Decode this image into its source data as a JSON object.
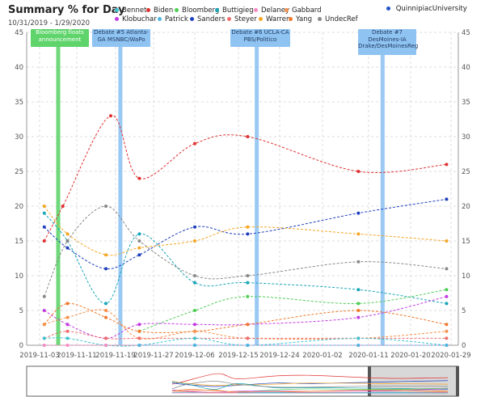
{
  "header": {
    "title": "Summary % for Day",
    "date_range": "10/31/2019 - 1/29/2020",
    "source_label": "QuinnipiacUniversity",
    "source_color": "#1f54c6"
  },
  "legend": [
    {
      "name": "Bennet",
      "color": "#3fc4d1"
    },
    {
      "name": "Biden",
      "color": "#e03131"
    },
    {
      "name": "Bloomberg",
      "color": "#4fce54"
    },
    {
      "name": "Buttigieg",
      "color": "#18a6b8"
    },
    {
      "name": "Delaney",
      "color": "#f58ac2"
    },
    {
      "name": "Gabbard",
      "color": "#f7924d"
    },
    {
      "name": "Klobuchar",
      "color": "#c13ce0"
    },
    {
      "name": "Patrick",
      "color": "#4db5e0"
    },
    {
      "name": "Sanders",
      "color": "#1f3fbd"
    },
    {
      "name": "Steyer",
      "color": "#f06d6d"
    },
    {
      "name": "Warren",
      "color": "#f5a623"
    },
    {
      "name": "Yang",
      "color": "#f07a2e"
    },
    {
      "name": "UndecRef",
      "color": "#888888"
    }
  ],
  "events": [
    {
      "label": "Bloomberg floats announcement",
      "date": "2019-11-07",
      "color": "#5fd46b",
      "style": "green"
    },
    {
      "label": "Debate #5 Atlanta-GA MSNBC/WaPo",
      "date": "2019-11-20",
      "color": "#8fc3f2",
      "style": "blue"
    },
    {
      "label": "Debate #6 UCLA-CA PBS/Politico",
      "date": "2019-12-19",
      "color": "#8fc3f2",
      "style": "blue"
    },
    {
      "label": "Debate #7 DesMoines-IA Drake/DesMoinesReg",
      "date": "2020-01-14",
      "color": "#8fc3f2",
      "style": "blue"
    }
  ],
  "chart_data": {
    "type": "line",
    "title": "Summary % for Day",
    "xlabel": "",
    "ylabel": "",
    "x_ticks": [
      "2019-11-03",
      "2019-11-11",
      "2019-11-19",
      "2019-11-27",
      "2019-12-06",
      "2019-12-15",
      "2019-12-24",
      "2020-01-02",
      "2020-01-11",
      "2020-01-20",
      "2020-01-29"
    ],
    "ylim": [
      0,
      45
    ],
    "y_ticks": [
      0,
      5,
      10,
      15,
      20,
      25,
      30,
      35,
      40,
      45
    ],
    "grid": true,
    "series": [
      {
        "name": "Biden",
        "color": "#e03131",
        "points": [
          [
            "2019-11-04",
            15
          ],
          [
            "2019-11-08",
            20
          ],
          [
            "2019-11-18",
            33
          ],
          [
            "2019-11-24",
            24
          ],
          [
            "2019-12-06",
            29
          ],
          [
            "2019-12-17",
            30
          ],
          [
            "2020-01-09",
            25
          ],
          [
            "2020-01-28",
            26
          ]
        ]
      },
      {
        "name": "Sanders",
        "color": "#1f3fbd",
        "points": [
          [
            "2019-11-04",
            17
          ],
          [
            "2019-11-09",
            14
          ],
          [
            "2019-11-17",
            11
          ],
          [
            "2019-11-24",
            13
          ],
          [
            "2019-12-06",
            17
          ],
          [
            "2019-12-17",
            16
          ],
          [
            "2020-01-09",
            19
          ],
          [
            "2020-01-28",
            21
          ]
        ]
      },
      {
        "name": "Warren",
        "color": "#f5a623",
        "points": [
          [
            "2019-11-04",
            20
          ],
          [
            "2019-11-09",
            16
          ],
          [
            "2019-11-17",
            13
          ],
          [
            "2019-11-24",
            14
          ],
          [
            "2019-12-06",
            15
          ],
          [
            "2019-12-17",
            17
          ],
          [
            "2020-01-09",
            16
          ],
          [
            "2020-01-28",
            15
          ]
        ]
      },
      {
        "name": "Buttigieg",
        "color": "#18a6b8",
        "points": [
          [
            "2019-11-04",
            19
          ],
          [
            "2019-11-09",
            15
          ],
          [
            "2019-11-17",
            6
          ],
          [
            "2019-11-24",
            16
          ],
          [
            "2019-12-06",
            9
          ],
          [
            "2019-12-17",
            9
          ],
          [
            "2020-01-09",
            8
          ],
          [
            "2020-01-28",
            6
          ]
        ]
      },
      {
        "name": "UndecRef",
        "color": "#888888",
        "points": [
          [
            "2019-11-04",
            7
          ],
          [
            "2019-11-09",
            15
          ],
          [
            "2019-11-17",
            20
          ],
          [
            "2019-11-24",
            15
          ],
          [
            "2019-12-06",
            10
          ],
          [
            "2019-12-17",
            10
          ],
          [
            "2020-01-09",
            12
          ],
          [
            "2020-01-28",
            11
          ]
        ]
      },
      {
        "name": "Bloomberg",
        "color": "#4fce54",
        "points": [
          [
            "2019-11-24",
            2
          ],
          [
            "2019-12-06",
            5
          ],
          [
            "2019-12-17",
            7
          ],
          [
            "2020-01-09",
            6
          ],
          [
            "2020-01-28",
            8
          ]
        ]
      },
      {
        "name": "Klobuchar",
        "color": "#c13ce0",
        "points": [
          [
            "2019-11-04",
            5
          ],
          [
            "2019-11-09",
            3
          ],
          [
            "2019-11-17",
            1
          ],
          [
            "2019-11-24",
            3
          ],
          [
            "2019-12-06",
            3
          ],
          [
            "2019-12-17",
            3
          ],
          [
            "2020-01-09",
            4
          ],
          [
            "2020-01-28",
            7
          ]
        ]
      },
      {
        "name": "Yang",
        "color": "#f07a2e",
        "points": [
          [
            "2019-11-04",
            3
          ],
          [
            "2019-11-09",
            6
          ],
          [
            "2019-11-17",
            4
          ],
          [
            "2019-11-24",
            2
          ],
          [
            "2019-12-06",
            2
          ],
          [
            "2019-12-17",
            3
          ],
          [
            "2020-01-09",
            5
          ],
          [
            "2020-01-28",
            3
          ]
        ]
      },
      {
        "name": "Gabbard",
        "color": "#f7924d",
        "points": [
          [
            "2019-11-04",
            3
          ],
          [
            "2019-11-09",
            4
          ],
          [
            "2019-11-17",
            5
          ],
          [
            "2019-11-24",
            1
          ],
          [
            "2019-12-06",
            2
          ],
          [
            "2019-12-17",
            1
          ],
          [
            "2020-01-09",
            1
          ],
          [
            "2020-01-28",
            2
          ]
        ]
      },
      {
        "name": "Steyer",
        "color": "#f06d6d",
        "points": [
          [
            "2019-11-04",
            1
          ],
          [
            "2019-11-09",
            2
          ],
          [
            "2019-11-17",
            1
          ],
          [
            "2019-11-24",
            1
          ],
          [
            "2019-12-06",
            1
          ],
          [
            "2019-12-17",
            1
          ],
          [
            "2020-01-09",
            1
          ],
          [
            "2020-01-28",
            1
          ]
        ]
      },
      {
        "name": "Bennet",
        "color": "#3fc4d1",
        "points": [
          [
            "2019-11-04",
            1
          ],
          [
            "2019-11-09",
            1
          ],
          [
            "2019-11-17",
            0
          ],
          [
            "2019-11-24",
            0
          ],
          [
            "2019-12-06",
            1
          ],
          [
            "2019-12-17",
            0
          ],
          [
            "2020-01-09",
            1
          ],
          [
            "2020-01-28",
            0
          ]
        ]
      },
      {
        "name": "Delaney",
        "color": "#f58ac2",
        "points": [
          [
            "2019-11-04",
            0
          ],
          [
            "2019-11-09",
            0
          ],
          [
            "2019-11-17",
            0
          ],
          [
            "2019-11-24",
            0
          ],
          [
            "2019-12-06",
            0
          ],
          [
            "2019-12-17",
            0
          ],
          [
            "2020-01-09",
            0
          ],
          [
            "2020-01-28",
            0
          ]
        ]
      },
      {
        "name": "Patrick",
        "color": "#4db5e0",
        "points": [
          [
            "2019-11-24",
            0
          ],
          [
            "2019-12-06",
            0
          ],
          [
            "2019-12-17",
            0
          ],
          [
            "2020-01-09",
            0
          ],
          [
            "2020-01-28",
            0
          ]
        ]
      }
    ]
  }
}
